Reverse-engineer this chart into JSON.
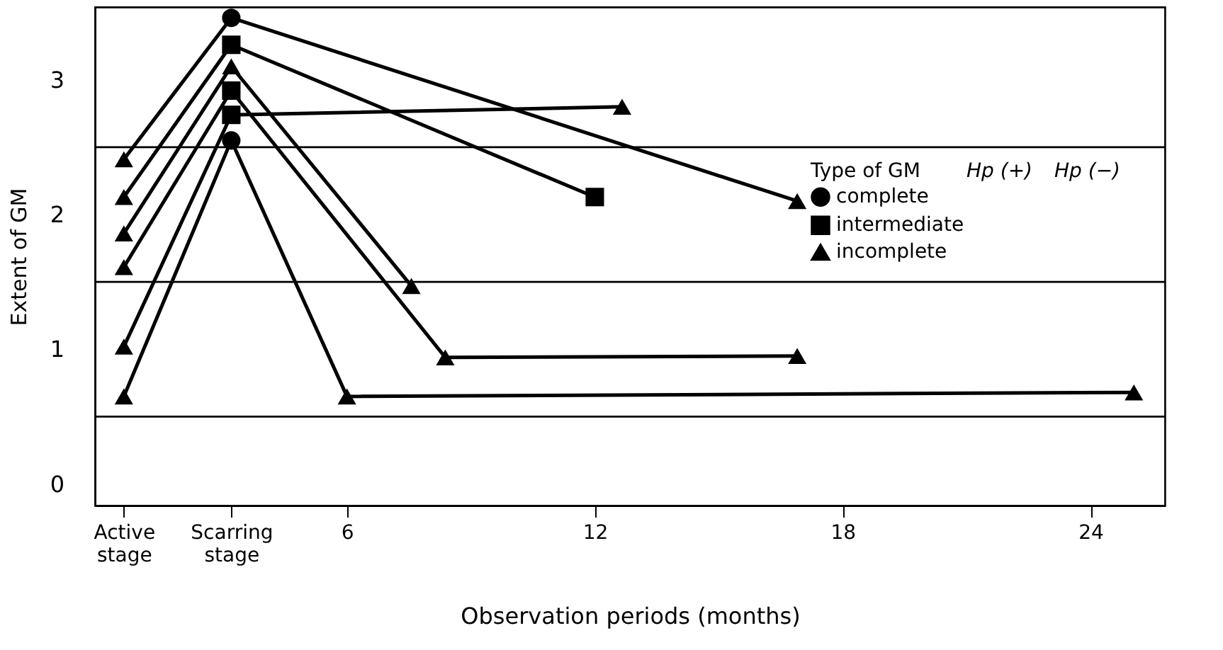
{
  "chart_data": {
    "type": "line",
    "xlabel": "Observation periods (months)",
    "ylabel": "Extent of GM",
    "legend_title": "Type of GM",
    "xlim": [
      -0.1,
      25.8
    ],
    "ylim": [
      -0.16,
      3.54
    ],
    "xticks": [
      {
        "value": 0.6,
        "label": "Active stage"
      },
      {
        "value": 3.2,
        "label": "Scarring stage"
      },
      6,
      12,
      18,
      24
    ],
    "yticks": [
      0,
      1,
      2,
      3
    ],
    "grid": false,
    "legend": "right",
    "marker": "none",
    "line_style": "solid",
    "ref_lines": [
      {
        "axis": "y",
        "value": 0.5,
        "color": "#000000"
      },
      {
        "axis": "y",
        "value": 1.5,
        "color": "#000000"
      },
      {
        "axis": "y",
        "value": 2.5,
        "color": "#000000"
      }
    ],
    "annotations": [
      "Hp (+)",
      "Hp (−)"
    ],
    "series": [
      {
        "color": "#000000",
        "x": [
          0.6,
          3.2,
          16.9
        ],
        "values": [
          2.41,
          3.46,
          2.1
        ]
      },
      {
        "color": "#000000",
        "x": [
          0.6,
          3.2,
          12.0
        ],
        "values": [
          2.13,
          3.26,
          2.13
        ]
      },
      {
        "color": "#000000",
        "x": [
          0.6,
          3.2,
          7.56
        ],
        "values": [
          1.86,
          3.1,
          1.47
        ]
      },
      {
        "color": "#000000",
        "x": [
          0.6,
          3.2,
          8.38,
          16.9
        ],
        "values": [
          1.61,
          2.92,
          0.94,
          0.95
        ]
      },
      {
        "color": "#000000",
        "x": [
          0.6,
          3.2,
          12.66
        ],
        "values": [
          1.02,
          2.74,
          2.8
        ]
      },
      {
        "color": "#000000",
        "x": [
          0.6,
          3.2,
          6.0,
          25.05
        ],
        "values": [
          0.65,
          2.55,
          0.65,
          0.68
        ]
      },
      {
        "type": "scatter",
        "name": "complete",
        "marker": "circle",
        "color": "#000000",
        "x": [
          3.2,
          3.2
        ],
        "values": [
          3.46,
          2.55
        ]
      },
      {
        "type": "scatter",
        "name": "intermediate",
        "marker": "square",
        "color": "#000000",
        "x": [
          3.2,
          3.2,
          3.2,
          12.0
        ],
        "values": [
          3.26,
          2.92,
          2.74,
          2.13
        ]
      },
      {
        "type": "scatter",
        "name": "incomplete",
        "marker": "triangle",
        "color": "#000000",
        "x": [
          0.6,
          0.6,
          0.6,
          0.6,
          0.6,
          0.6,
          3.2,
          16.9,
          7.56,
          8.38,
          16.9,
          12.66,
          6.0,
          25.05
        ],
        "values": [
          2.41,
          2.13,
          1.86,
          1.61,
          1.02,
          0.65,
          3.1,
          2.1,
          1.47,
          0.94,
          0.95,
          2.8,
          0.65,
          0.68
        ]
      }
    ]
  }
}
